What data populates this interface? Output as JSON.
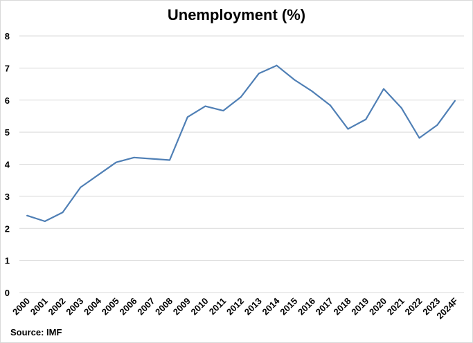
{
  "chart_data": {
    "type": "line",
    "title": "Unemployment (%)",
    "xlabel": "",
    "ylabel": "",
    "categories": [
      "2000",
      "2001",
      "2002",
      "2003",
      "2004",
      "2005",
      "2006",
      "2007",
      "2008",
      "2009",
      "2010",
      "2011",
      "2012",
      "2013",
      "2014",
      "2015",
      "2016",
      "2017",
      "2018",
      "2019",
      "2020",
      "2021",
      "2022",
      "2023",
      "2024F"
    ],
    "series": [
      {
        "values": [
          2.4,
          2.22,
          2.5,
          3.28,
          3.67,
          4.06,
          4.21,
          4.17,
          4.13,
          5.47,
          5.81,
          5.67,
          6.1,
          6.83,
          7.08,
          6.63,
          6.27,
          5.84,
          5.1,
          5.4,
          6.35,
          5.75,
          4.82,
          5.22,
          5.98
        ]
      }
    ],
    "ylim": [
      0,
      8
    ],
    "yticks": [
      0,
      1,
      2,
      3,
      4,
      5,
      6,
      7,
      8
    ],
    "grid": true,
    "legend": "none",
    "line_color": "#4f7fb5",
    "grid_color": "#d9d9d9"
  },
  "source_note": "Source: IMF"
}
